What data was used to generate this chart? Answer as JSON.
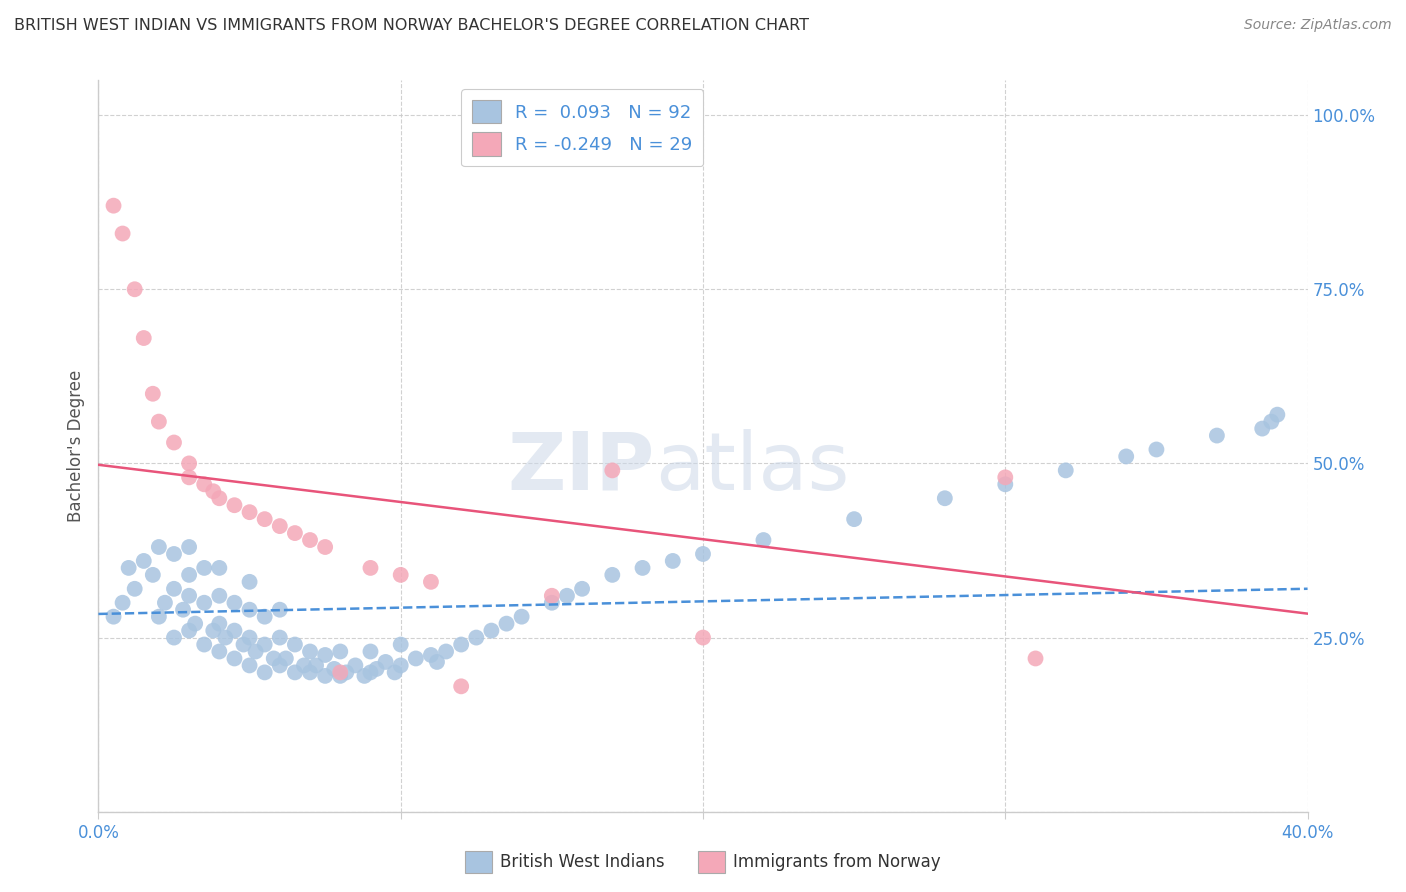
{
  "title": "BRITISH WEST INDIAN VS IMMIGRANTS FROM NORWAY BACHELOR'S DEGREE CORRELATION CHART",
  "source": "Source: ZipAtlas.com",
  "ylabel": "Bachelor's Degree",
  "xlim": [
    0.0,
    0.4
  ],
  "ylim": [
    0.0,
    1.05
  ],
  "blue_color": "#a8c4e0",
  "pink_color": "#f4a8b8",
  "blue_line_color": "#4a90d9",
  "pink_line_color": "#e8547a",
  "blue_scatter_x": [
    0.005,
    0.008,
    0.01,
    0.012,
    0.015,
    0.018,
    0.02,
    0.02,
    0.022,
    0.025,
    0.025,
    0.025,
    0.028,
    0.03,
    0.03,
    0.03,
    0.03,
    0.032,
    0.035,
    0.035,
    0.035,
    0.038,
    0.04,
    0.04,
    0.04,
    0.04,
    0.042,
    0.045,
    0.045,
    0.045,
    0.048,
    0.05,
    0.05,
    0.05,
    0.05,
    0.052,
    0.055,
    0.055,
    0.055,
    0.058,
    0.06,
    0.06,
    0.06,
    0.062,
    0.065,
    0.065,
    0.068,
    0.07,
    0.07,
    0.072,
    0.075,
    0.075,
    0.078,
    0.08,
    0.08,
    0.082,
    0.085,
    0.088,
    0.09,
    0.09,
    0.092,
    0.095,
    0.098,
    0.1,
    0.1,
    0.105,
    0.11,
    0.112,
    0.115,
    0.12,
    0.125,
    0.13,
    0.135,
    0.14,
    0.15,
    0.155,
    0.16,
    0.17,
    0.18,
    0.19,
    0.2,
    0.22,
    0.25,
    0.28,
    0.3,
    0.32,
    0.34,
    0.35,
    0.37,
    0.385,
    0.388,
    0.39
  ],
  "blue_scatter_y": [
    0.28,
    0.3,
    0.35,
    0.32,
    0.36,
    0.34,
    0.28,
    0.38,
    0.3,
    0.25,
    0.32,
    0.37,
    0.29,
    0.26,
    0.31,
    0.34,
    0.38,
    0.27,
    0.24,
    0.3,
    0.35,
    0.26,
    0.23,
    0.27,
    0.31,
    0.35,
    0.25,
    0.22,
    0.26,
    0.3,
    0.24,
    0.21,
    0.25,
    0.29,
    0.33,
    0.23,
    0.2,
    0.24,
    0.28,
    0.22,
    0.21,
    0.25,
    0.29,
    0.22,
    0.2,
    0.24,
    0.21,
    0.2,
    0.23,
    0.21,
    0.195,
    0.225,
    0.205,
    0.195,
    0.23,
    0.2,
    0.21,
    0.195,
    0.2,
    0.23,
    0.205,
    0.215,
    0.2,
    0.21,
    0.24,
    0.22,
    0.225,
    0.215,
    0.23,
    0.24,
    0.25,
    0.26,
    0.27,
    0.28,
    0.3,
    0.31,
    0.32,
    0.34,
    0.35,
    0.36,
    0.37,
    0.39,
    0.42,
    0.45,
    0.47,
    0.49,
    0.51,
    0.52,
    0.54,
    0.55,
    0.56,
    0.57
  ],
  "pink_scatter_x": [
    0.005,
    0.008,
    0.012,
    0.015,
    0.018,
    0.02,
    0.025,
    0.03,
    0.03,
    0.035,
    0.038,
    0.04,
    0.045,
    0.05,
    0.055,
    0.06,
    0.065,
    0.07,
    0.075,
    0.08,
    0.09,
    0.1,
    0.11,
    0.12,
    0.15,
    0.17,
    0.2,
    0.3,
    0.31
  ],
  "pink_scatter_y": [
    0.87,
    0.83,
    0.75,
    0.68,
    0.6,
    0.56,
    0.53,
    0.5,
    0.48,
    0.47,
    0.46,
    0.45,
    0.44,
    0.43,
    0.42,
    0.41,
    0.4,
    0.39,
    0.38,
    0.2,
    0.35,
    0.34,
    0.33,
    0.18,
    0.31,
    0.49,
    0.25,
    0.48,
    0.22
  ],
  "blue_R": 0.093,
  "blue_N": 92,
  "pink_R": -0.249,
  "pink_N": 29
}
